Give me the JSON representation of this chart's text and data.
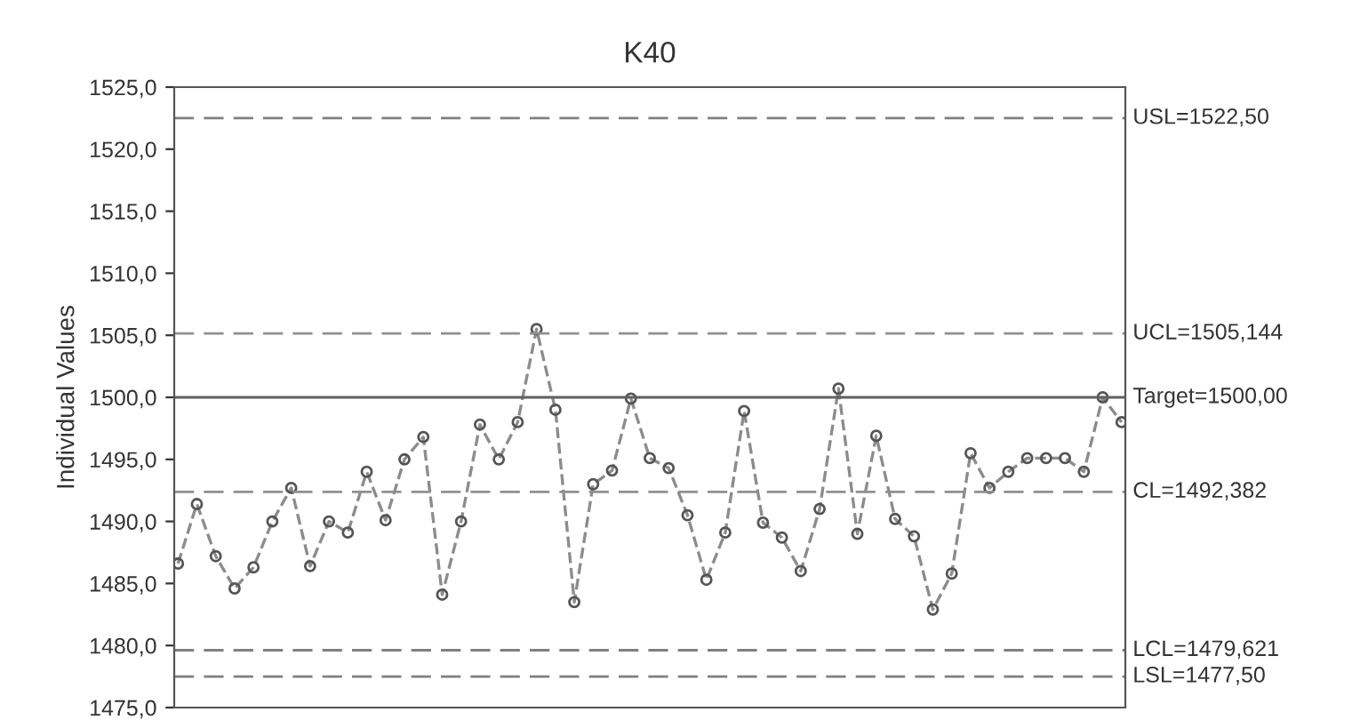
{
  "chart_data": {
    "type": "line",
    "title": "K40",
    "ylabel": "Individual Values",
    "categories": [
      null,
      null,
      null,
      null,
      null,
      null,
      null,
      null,
      null,
      null,
      null,
      null,
      null,
      null,
      null,
      null,
      null,
      null,
      null,
      null,
      null,
      null,
      null,
      null,
      null,
      null,
      null,
      null,
      null,
      null,
      null,
      null,
      null,
      null,
      null,
      null,
      null,
      null,
      null,
      null,
      null,
      null,
      null,
      null,
      null,
      null,
      null,
      null,
      null,
      null,
      null
    ],
    "series": [
      {
        "color": "#8c8c8c",
        "values": [
          1486.6,
          1491.4,
          1487.2,
          1484.6,
          1486.3,
          1490.0,
          1492.7,
          1486.4,
          1490.0,
          1489.1,
          1494.0,
          1490.1,
          1495.0,
          1496.8,
          1484.1,
          1490.0,
          1497.8,
          1495.0,
          1498.0,
          1505.5,
          1499.0,
          1483.5,
          1493.0,
          1494.1,
          1499.9,
          1495.1,
          1494.3,
          1490.5,
          1485.3,
          1489.1,
          1498.9,
          1489.9,
          1488.7,
          1486.0,
          1491.0,
          1500.7,
          1489.0,
          1496.9,
          1490.2,
          1488.8,
          1482.9,
          1485.8,
          1495.5,
          1492.7,
          1494.0,
          1495.1,
          1495.1,
          1495.1,
          1494.0,
          1500.0,
          1498.0
        ]
      }
    ],
    "marker": "circle",
    "line_style": "dashed",
    "grid": false,
    "ylim": [
      1475,
      1525
    ],
    "yticks": [
      {
        "value": 1475,
        "label": "1475,0"
      },
      {
        "value": 1480,
        "label": "1480,0"
      },
      {
        "value": 1485,
        "label": "1485,0"
      },
      {
        "value": 1490,
        "label": "1490,0"
      },
      {
        "value": 1495,
        "label": "1495,0"
      },
      {
        "value": 1500,
        "label": "1500,0"
      },
      {
        "value": 1505,
        "label": "1505,0"
      },
      {
        "value": 1510,
        "label": "1510,0"
      },
      {
        "value": 1515,
        "label": "1515,0"
      },
      {
        "value": 1520,
        "label": "1520,0"
      },
      {
        "value": 1525,
        "label": "1525,0"
      }
    ],
    "ref_lines": [
      {
        "axis": "y",
        "value": 1522.5,
        "label": "USL=1522,50",
        "color": "#808080",
        "line_style": "dashed"
      },
      {
        "axis": "y",
        "value": 1505.144,
        "label": "UCL=1505,144",
        "color": "#909090",
        "line_style": "dashed"
      },
      {
        "axis": "y",
        "value": 1500,
        "label": "Target=1500,00",
        "color": "#606060",
        "line_style": "solid"
      },
      {
        "axis": "y",
        "value": 1492.382,
        "label": "CL=1492,382",
        "color": "#909090",
        "line_style": "dashed"
      },
      {
        "axis": "y",
        "value": 1479.621,
        "label": "LCL=1479,621",
        "color": "#808080",
        "line_style": "dashed"
      },
      {
        "axis": "y",
        "value": 1477.5,
        "label": "LSL=1477,50",
        "color": "#808080",
        "line_style": "dashed"
      }
    ]
  }
}
